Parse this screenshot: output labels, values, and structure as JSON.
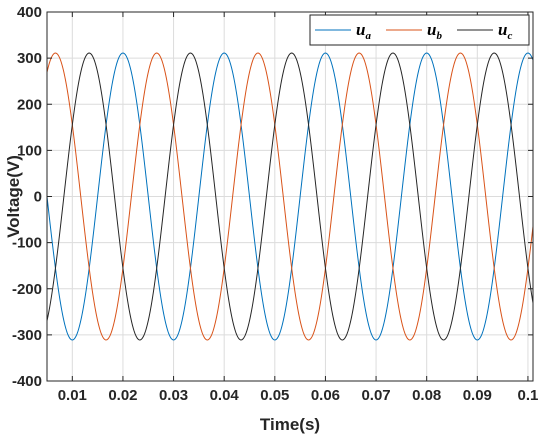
{
  "chart_data": {
    "type": "line",
    "title": "",
    "xlabel": "Time(s)",
    "ylabel": "Voltage(V)",
    "xlim": [
      0.005,
      0.101
    ],
    "ylim": [
      -400,
      400
    ],
    "x_ticks": [
      0.01,
      0.02,
      0.03,
      0.04,
      0.05,
      0.06,
      0.07,
      0.08,
      0.09,
      0.1
    ],
    "x_tick_labels": [
      "0.01",
      "0.02",
      "0.03",
      "0.04",
      "0.05",
      "0.06",
      "0.07",
      "0.08",
      "0.09",
      "0.1"
    ],
    "y_ticks": [
      -400,
      -300,
      -200,
      -100,
      0,
      100,
      200,
      300,
      400
    ],
    "y_tick_labels": [
      "-400",
      "-300",
      "-200",
      "-100",
      "0",
      "100",
      "200",
      "300",
      "400"
    ],
    "grid": true,
    "legend_position": "top-right",
    "series": [
      {
        "name": "u",
        "subscript": "a",
        "color": "#0072BD",
        "amplitude": 311,
        "frequency_hz": 50,
        "phase_deg": 90
      },
      {
        "name": "u",
        "subscript": "b",
        "color": "#D95319",
        "amplitude": 311,
        "frequency_hz": 50,
        "phase_deg": -30
      },
      {
        "name": "u",
        "subscript": "c",
        "color": "#262626",
        "amplitude": 311,
        "frequency_hz": 50,
        "phase_deg": 210
      }
    ]
  }
}
